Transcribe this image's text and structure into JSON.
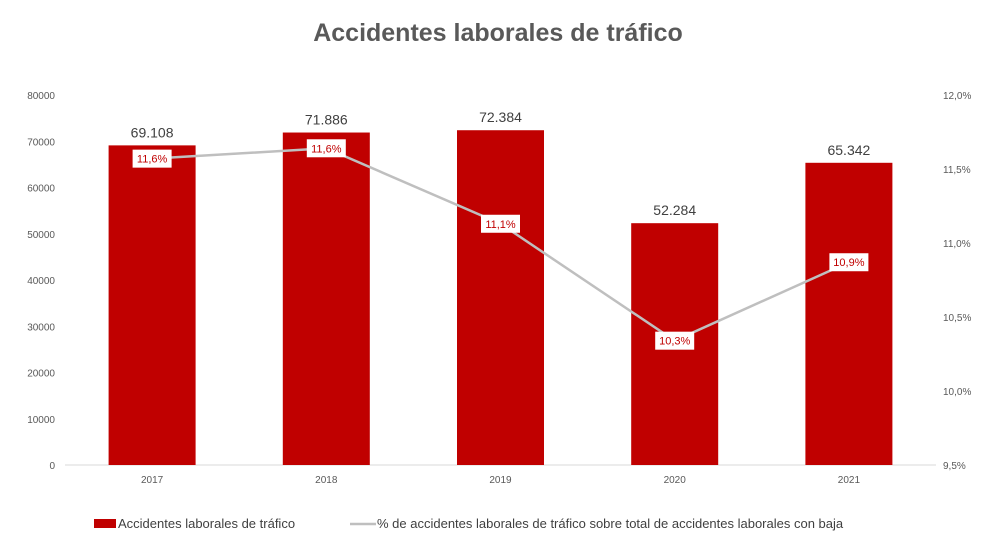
{
  "chart_data": {
    "type": "bar+line",
    "title": "Accidentes laborales de tráfico",
    "categories": [
      "2017",
      "2018",
      "2019",
      "2020",
      "2021"
    ],
    "series": [
      {
        "name": "Accidentes laborales de tráfico",
        "type": "bar",
        "axis": "left",
        "color": "#c00000",
        "values": [
          69108,
          71886,
          72384,
          52284,
          65342
        ],
        "labels": [
          "69.108",
          "71.886",
          "72.384",
          "52.284",
          "65.342"
        ]
      },
      {
        "name": "% de accidentes laborales de tráfico sobre total de accidentes laborales con baja",
        "type": "line",
        "axis": "right",
        "color": "#bfbfbf",
        "values": [
          11.57,
          11.64,
          11.13,
          10.34,
          10.87
        ],
        "labels": [
          "11,6%",
          "11,6%",
          "11,1%",
          "10,3%",
          "10,9%"
        ]
      }
    ],
    "ylim": [
      0,
      80000
    ],
    "yticks": [
      "0",
      "10000",
      "20000",
      "30000",
      "40000",
      "50000",
      "60000",
      "70000",
      "80000"
    ],
    "y2lim": [
      9.5,
      12.0
    ],
    "y2ticks": [
      "9,5%",
      "10,0%",
      "10,5%",
      "11,0%",
      "11,5%",
      "12,0%"
    ],
    "legend_position": "bottom",
    "grid": false
  }
}
